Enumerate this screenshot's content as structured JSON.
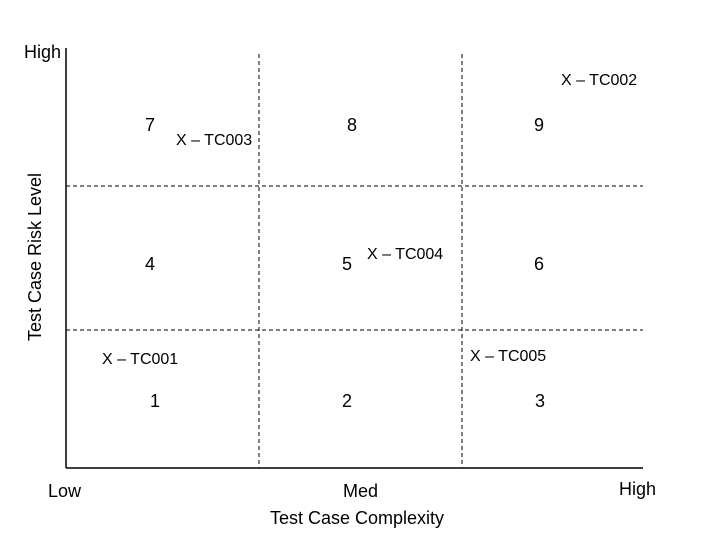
{
  "axes": {
    "x_title": "Test Case Complexity",
    "y_title": "Test Case Risk Level",
    "x_low": "Low",
    "x_med": "Med",
    "x_high": "High",
    "y_high": "High"
  },
  "cells": {
    "c1": "1",
    "c2": "2",
    "c3": "3",
    "c4": "4",
    "c5": "5",
    "c6": "6",
    "c7": "7",
    "c8": "8",
    "c9": "9"
  },
  "test_cases": {
    "tc001": "X – TC001",
    "tc002": "X – TC002",
    "tc003": "X – TC003",
    "tc004": "X – TC004",
    "tc005": "X – TC005"
  },
  "colors": {
    "ink": "#000000",
    "background": "#ffffff"
  }
}
